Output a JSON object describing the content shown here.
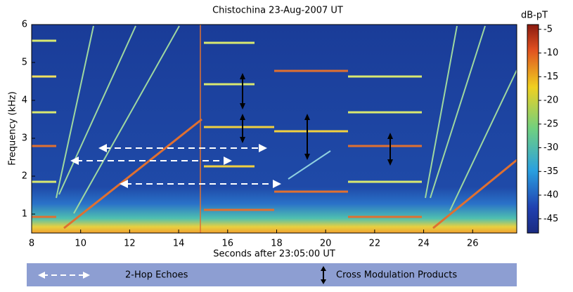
{
  "chart_data": {
    "type": "spectrogram",
    "title": "Chistochina 23-Aug-2007 UT",
    "xlabel": "Seconds after 23:05:00 UT",
    "ylabel": "Frequency (kHz)",
    "xlim": [
      8,
      27.8
    ],
    "xticks": [
      8,
      10,
      12,
      14,
      16,
      18,
      20,
      22,
      24,
      26
    ],
    "ylim": [
      0.5,
      6
    ],
    "yticks": [
      1,
      2,
      3,
      4,
      5,
      6
    ],
    "colorbar": {
      "label": "dB-pT",
      "lim": [
        -48,
        -4
      ],
      "ticks": [
        -5,
        -10,
        -15,
        -20,
        -25,
        -30,
        -35,
        -40,
        -45
      ]
    },
    "legend": [
      "2-Hop Echoes",
      "Cross Modulation Products"
    ]
  }
}
